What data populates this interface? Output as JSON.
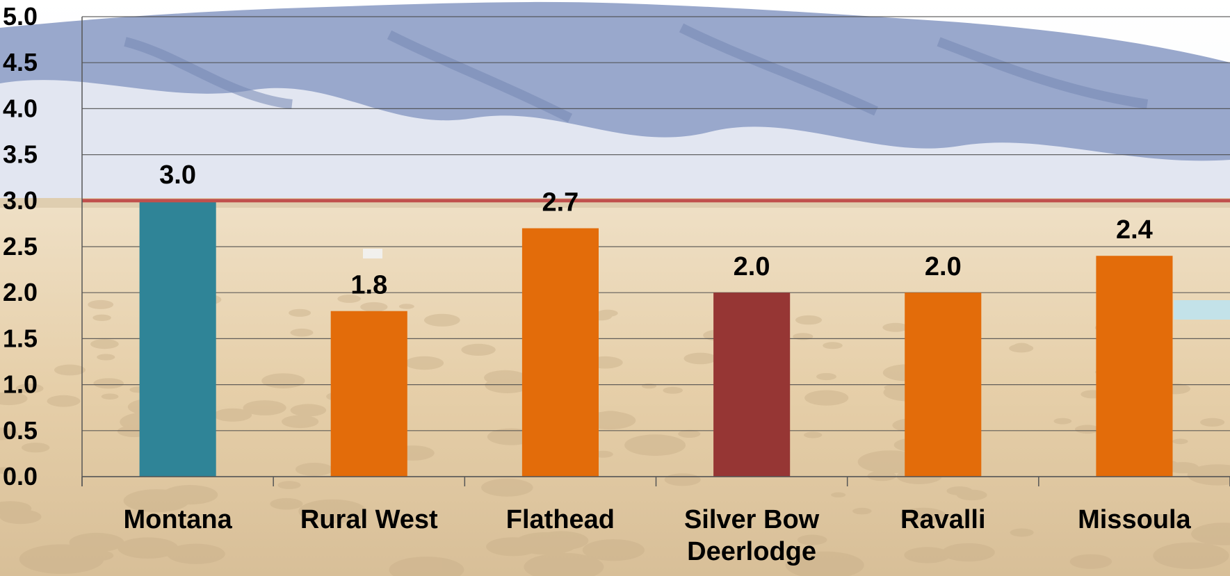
{
  "chart_data": {
    "type": "bar",
    "categories": [
      "Montana",
      "Rural West",
      "Flathead",
      "Silver Bow Deerlodge",
      "Ravalli",
      "Missoula"
    ],
    "category_lines": [
      [
        "Montana"
      ],
      [
        "Rural West"
      ],
      [
        "Flathead"
      ],
      [
        "Silver Bow",
        "Deerlodge"
      ],
      [
        "Ravalli"
      ],
      [
        "Missoula"
      ]
    ],
    "values": [
      3.0,
      1.8,
      2.7,
      2.0,
      2.0,
      2.4
    ],
    "value_labels": [
      "3.0",
      "1.8",
      "2.7",
      "2.0",
      "2.0",
      "2.4"
    ],
    "bar_colors": [
      "#2f8497",
      "#e36c0a",
      "#e36c0a",
      "#963634",
      "#e36c0a",
      "#e36c0a"
    ],
    "ylim": [
      0,
      5
    ],
    "yticks": [
      "0.0",
      "0.5",
      "1.0",
      "1.5",
      "2.0",
      "2.5",
      "3.0",
      "3.5",
      "4.0",
      "4.5",
      "5.0"
    ],
    "reference_line": {
      "value": 3.0,
      "color": "#c0504d"
    },
    "grid": true,
    "title": "",
    "xlabel": "",
    "ylabel": ""
  },
  "background": {
    "sky_color": "#f2f4f8",
    "mountain_color": "#8e9fc7",
    "snow_color": "#eef1f7",
    "plain_color": "#e8d2b0",
    "brush_color": "#c9b08a"
  }
}
